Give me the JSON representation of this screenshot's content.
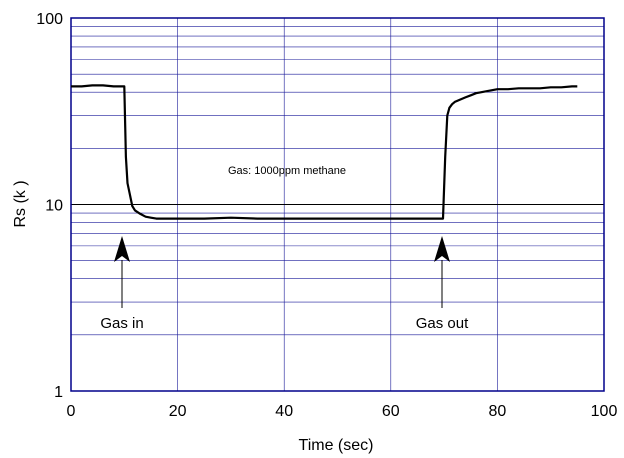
{
  "chart_data": {
    "type": "line",
    "xlabel": "Time (sec)",
    "ylabel": "Rs (k )",
    "xlim": [
      0,
      100
    ],
    "ylim": [
      1,
      100
    ],
    "yscale": "log",
    "grid": true,
    "x_ticks": [
      "0",
      "20",
      "40",
      "60",
      "80",
      "100"
    ],
    "y_ticks": [
      "1",
      "10",
      "100"
    ],
    "colors": {
      "frame": "#00008b",
      "grid": "#1a1a9a",
      "line": "#000000"
    },
    "series": [
      {
        "x": [
          0,
          2,
          4,
          6,
          8,
          10,
          10.3,
          10.6,
          11,
          11.5,
          12,
          13,
          14,
          15,
          16,
          20,
          25,
          30,
          35,
          40,
          45,
          50,
          55,
          60,
          65,
          69.8,
          70.2,
          70.6,
          71,
          71.5,
          72,
          73,
          74,
          75,
          76,
          77,
          78,
          79,
          80,
          82,
          84,
          86,
          88,
          90,
          92,
          94,
          95
        ],
        "y": [
          43,
          43,
          43.5,
          43.5,
          43,
          43,
          18,
          13,
          11.5,
          9.8,
          9.3,
          8.9,
          8.6,
          8.5,
          8.4,
          8.4,
          8.4,
          8.5,
          8.4,
          8.4,
          8.4,
          8.4,
          8.4,
          8.4,
          8.4,
          8.4,
          18,
          30,
          33,
          34.5,
          35.5,
          36.5,
          37.5,
          38.5,
          39.5,
          40,
          40.5,
          41,
          41.5,
          41.5,
          42,
          42,
          42,
          42.5,
          42.5,
          43,
          43
        ]
      }
    ],
    "annotations": [
      {
        "text": "Gas: 1000ppm methane",
        "x": 39,
        "y": 12.5
      },
      {
        "text": "Gas in",
        "x": 10,
        "y": 2.2
      },
      {
        "text": "Gas out",
        "x": 70,
        "y": 2.2
      }
    ]
  }
}
